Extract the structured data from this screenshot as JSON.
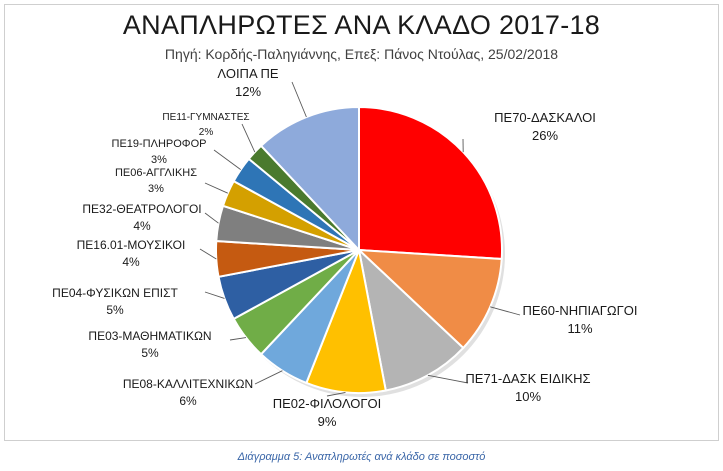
{
  "chart_data": {
    "type": "pie",
    "title": "ΑΝΑΠΛΗΡΩΤΕΣ ΑΝΑ ΚΛΑΔΟ 2017-18",
    "subtitle": "Πηγή:  Κορδής-Παληγιάννης, Επεξ: Πάνος Ντούλας, 25/02/2018",
    "slices": [
      {
        "label": "ΠΕ70-ΔΑΣΚΑΛΟΙ",
        "pct_label": "26%",
        "value": 26,
        "color": "#ff0000"
      },
      {
        "label": "ΠΕ60-ΝΗΠΙΑΓΩΓΟΙ",
        "pct_label": "11%",
        "value": 11,
        "color": "#f08c46"
      },
      {
        "label": "ΠΕ71-ΔΑΣΚ ΕΙΔΙΚΗΣ",
        "pct_label": "10%",
        "value": 10,
        "color": "#b4b4b4"
      },
      {
        "label": "ΠΕ02-ΦΙΛΟΛΟΓΟΙ",
        "pct_label": "9%",
        "value": 9,
        "color": "#ffc000"
      },
      {
        "label": "ΠΕ08-ΚΑΛΛΙΤΕΧΝΙΚΩΝ",
        "pct_label": "6%",
        "value": 6,
        "color": "#6fa8dc"
      },
      {
        "label": "ΠΕ03-ΜΑΘΗΜΑΤΙΚΩΝ",
        "pct_label": "5%",
        "value": 5,
        "color": "#70ad47"
      },
      {
        "label": "ΠΕ04-ΦΥΣΙΚΩΝ ΕΠΙΣΤ",
        "pct_label": "5%",
        "value": 5,
        "color": "#2e5fa3"
      },
      {
        "label": "ΠΕ16.01-ΜΟΥΣΙΚΟΙ",
        "pct_label": "4%",
        "value": 4,
        "color": "#c55a11"
      },
      {
        "label": "ΠΕ32-ΘΕΑΤΡΟΛΟΓΟΙ",
        "pct_label": "4%",
        "value": 4,
        "color": "#7f7f7f"
      },
      {
        "label": "ΠΕ06-ΑΓΓΛΙΚΗΣ",
        "pct_label": "3%",
        "value": 3,
        "color": "#d4a000"
      },
      {
        "label": "ΠΕ19-ΠΛΗΡΟΦΟΡ",
        "pct_label": "3%",
        "value": 3,
        "color": "#2e75b6"
      },
      {
        "label": "ΠΕ11-ΓΥΜΝΑΣΤΕΣ",
        "pct_label": "2%",
        "value": 2,
        "color": "#4a7a2e"
      },
      {
        "label": "ΛΟΙΠΑ ΠΕ",
        "pct_label": "12%",
        "value": 12,
        "color": "#8eaadb"
      }
    ]
  },
  "caption": "Διάγραμμα 5: Αναπληρωτές ανά κλάδο σε ποσοστό"
}
